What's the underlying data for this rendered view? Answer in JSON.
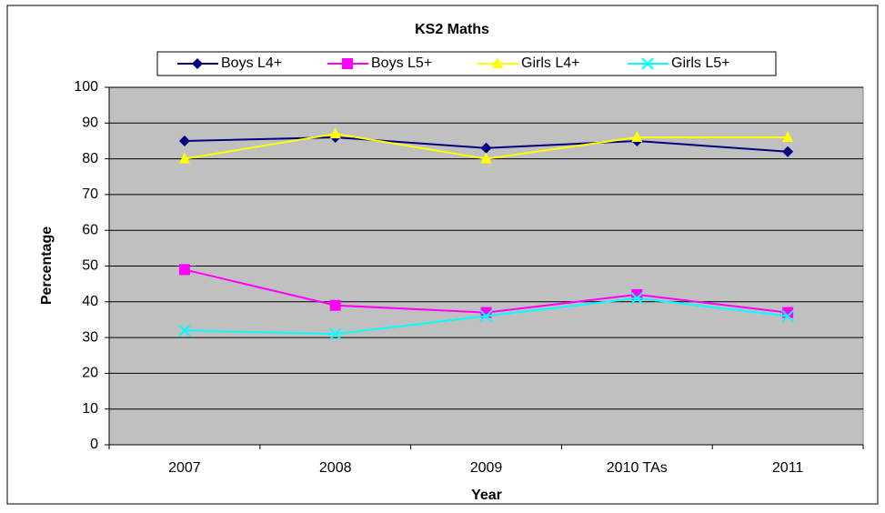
{
  "chart_data": {
    "type": "line",
    "title": "KS2 Maths",
    "x_label": "Year",
    "y_label": "Percentage",
    "categories": [
      "2007",
      "2008",
      "2009",
      "2010 TAs",
      "2011"
    ],
    "series": [
      {
        "name": "Boys L4+",
        "color": "#000080",
        "marker": "diamond",
        "values": [
          85,
          86,
          83,
          85,
          82
        ]
      },
      {
        "name": "Boys L5+",
        "color": "#ff00ff",
        "marker": "square",
        "values": [
          49,
          39,
          37,
          42,
          37
        ]
      },
      {
        "name": "Girls L4+",
        "color": "#ffff00",
        "marker": "triangle",
        "values": [
          80,
          87,
          80,
          86,
          86
        ]
      },
      {
        "name": "Girls L5+",
        "color": "#00ffff",
        "marker": "x",
        "values": [
          32,
          31,
          36,
          41,
          36
        ]
      }
    ],
    "ylim": [
      0,
      100
    ],
    "yticks": [
      0,
      10,
      20,
      30,
      40,
      50,
      60,
      70,
      80,
      90,
      100
    ],
    "grid": true,
    "legend": "top"
  }
}
